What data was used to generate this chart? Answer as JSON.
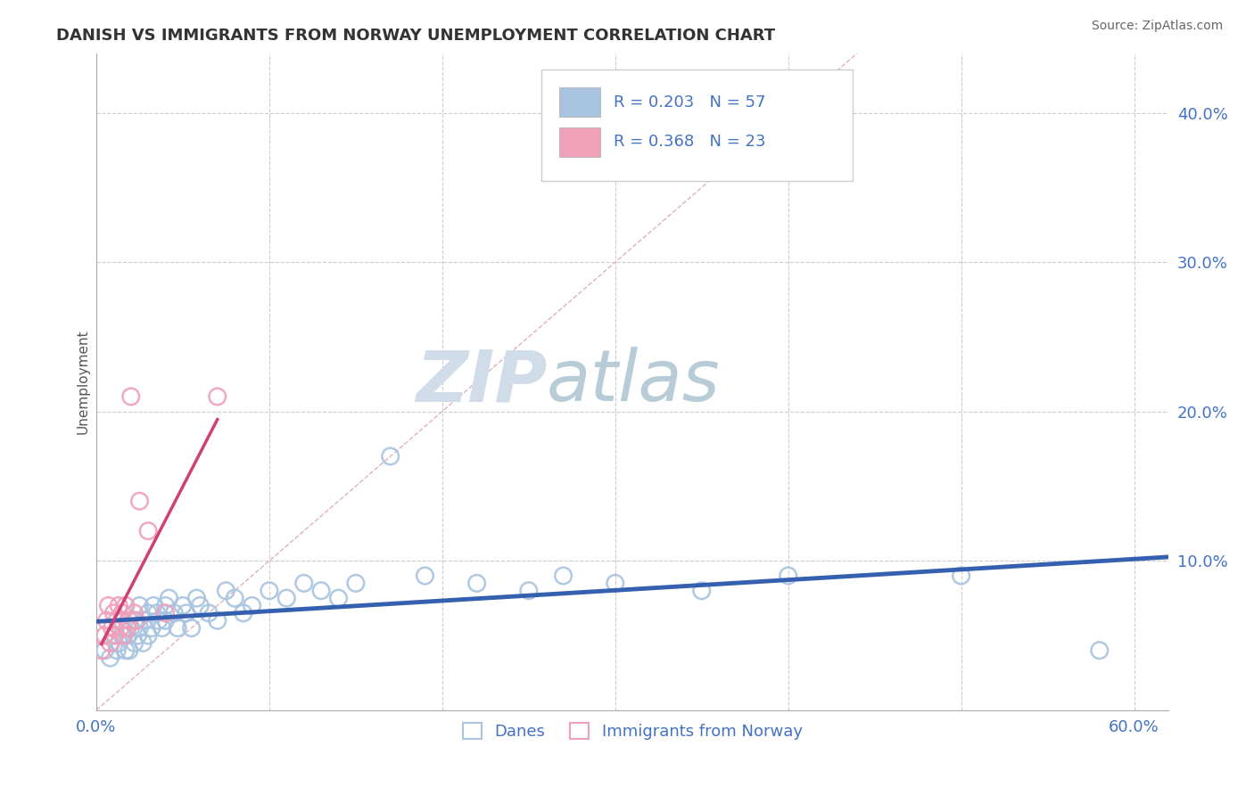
{
  "title": "DANISH VS IMMIGRANTS FROM NORWAY UNEMPLOYMENT CORRELATION CHART",
  "source": "Source: ZipAtlas.com",
  "ylabel": "Unemployment",
  "xlim": [
    0.0,
    0.62
  ],
  "ylim": [
    0.0,
    0.44
  ],
  "xticks": [
    0.0,
    0.1,
    0.2,
    0.3,
    0.4,
    0.5,
    0.6
  ],
  "xticklabels": [
    "0.0%",
    "",
    "",
    "",
    "",
    "",
    "60.0%"
  ],
  "yticks": [
    0.0,
    0.1,
    0.2,
    0.3,
    0.4
  ],
  "yticklabels": [
    "",
    "10.0%",
    "20.0%",
    "30.0%",
    "40.0%"
  ],
  "danes_R": 0.203,
  "danes_N": 57,
  "immigrants_R": 0.368,
  "immigrants_N": 23,
  "danes_color": "#a8c4e0",
  "immigrants_color": "#f0a0b8",
  "danes_line_color": "#3560b0",
  "immigrants_line_color": "#d04070",
  "diagonal_color": "#e0b0bc",
  "grid_color": "#cccccc",
  "background_color": "#ffffff",
  "legend_text_color": "#4472c4",
  "title_color": "#333333",
  "ylabel_color": "#555555",
  "danes_scatter_x": [
    0.005,
    0.008,
    0.01,
    0.012,
    0.013,
    0.015,
    0.015,
    0.017,
    0.018,
    0.019,
    0.02,
    0.022,
    0.022,
    0.024,
    0.025,
    0.025,
    0.027,
    0.028,
    0.03,
    0.03,
    0.032,
    0.033,
    0.035,
    0.036,
    0.038,
    0.04,
    0.04,
    0.042,
    0.045,
    0.047,
    0.05,
    0.052,
    0.055,
    0.058,
    0.06,
    0.065,
    0.07,
    0.075,
    0.08,
    0.085,
    0.09,
    0.1,
    0.11,
    0.12,
    0.13,
    0.14,
    0.15,
    0.17,
    0.19,
    0.22,
    0.25,
    0.27,
    0.3,
    0.35,
    0.4,
    0.5,
    0.58
  ],
  "danes_scatter_y": [
    0.04,
    0.035,
    0.05,
    0.04,
    0.045,
    0.05,
    0.06,
    0.04,
    0.05,
    0.04,
    0.055,
    0.045,
    0.06,
    0.05,
    0.07,
    0.055,
    0.045,
    0.06,
    0.065,
    0.05,
    0.055,
    0.07,
    0.065,
    0.06,
    0.055,
    0.07,
    0.06,
    0.075,
    0.065,
    0.055,
    0.07,
    0.065,
    0.055,
    0.075,
    0.07,
    0.065,
    0.06,
    0.08,
    0.075,
    0.065,
    0.07,
    0.08,
    0.075,
    0.085,
    0.08,
    0.075,
    0.085,
    0.17,
    0.09,
    0.085,
    0.08,
    0.09,
    0.085,
    0.08,
    0.09,
    0.09,
    0.04
  ],
  "immigrants_scatter_x": [
    0.003,
    0.005,
    0.006,
    0.007,
    0.008,
    0.009,
    0.01,
    0.011,
    0.012,
    0.013,
    0.014,
    0.015,
    0.016,
    0.017,
    0.018,
    0.019,
    0.02,
    0.022,
    0.023,
    0.025,
    0.03,
    0.04,
    0.07
  ],
  "immigrants_scatter_y": [
    0.04,
    0.05,
    0.06,
    0.07,
    0.045,
    0.055,
    0.065,
    0.05,
    0.06,
    0.07,
    0.055,
    0.065,
    0.05,
    0.07,
    0.055,
    0.06,
    0.21,
    0.065,
    0.06,
    0.14,
    0.12,
    0.065,
    0.21
  ]
}
